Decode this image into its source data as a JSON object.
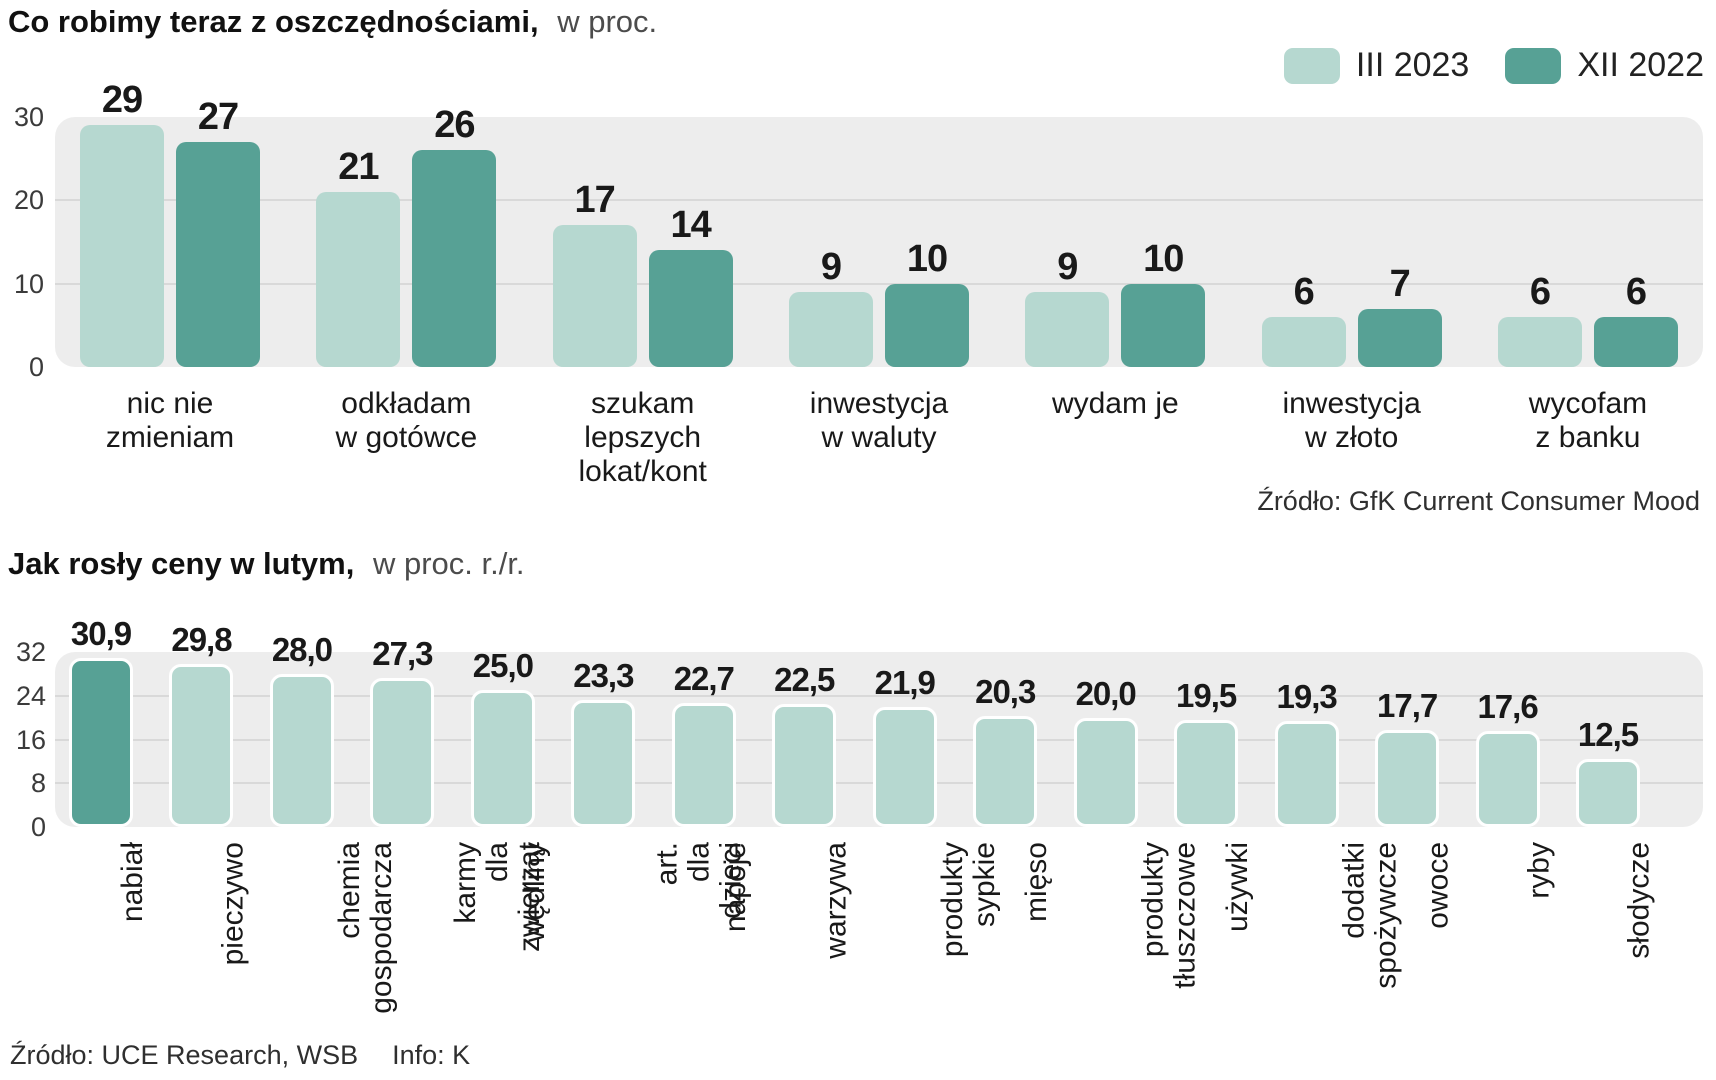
{
  "colors": {
    "series_light": "#b6d8d0",
    "series_dark": "#57a195",
    "plot_background": "#ededed",
    "gridline": "#d9d9d9"
  },
  "chart_data": [
    {
      "type": "bar",
      "title": "Co robimy teraz z oszczędnościami,",
      "subtitle": "w proc.",
      "categories": [
        "nic nie\nzmieniam",
        "odkładam\nw gotówce",
        "szukam\nlepszych\nlokat/kont",
        "inwestycja\nw waluty",
        "wydam je",
        "inwestycja\nw złoto",
        "wycofam\nz banku"
      ],
      "series": [
        {
          "name": "III 2023",
          "color": "#b6d8d0",
          "values": [
            29,
            21,
            17,
            9,
            9,
            6,
            6
          ]
        },
        {
          "name": "XII 2022",
          "color": "#57a195",
          "values": [
            27,
            26,
            14,
            10,
            10,
            7,
            6
          ]
        }
      ],
      "ylim": [
        0,
        30
      ],
      "y_ticks": [
        0,
        10,
        20,
        30
      ],
      "grid": true,
      "legend_position": "top-right",
      "source": "Źródło: GfK Current Consumer Mood"
    },
    {
      "type": "bar",
      "title": "Jak rosły ceny w lutym,",
      "subtitle": "w proc. r./r.",
      "categories": [
        "nabiał",
        "pieczywo",
        "chemia\ngospodarcza",
        "karmy\ndla\nzwierząt",
        "wędliny",
        "art.\ndla\ndzieci",
        "napoje",
        "warzywa",
        "produkty\nsypkie",
        "mięso",
        "produkty\ntłuszczowe",
        "używki",
        "dodatki\nspożywcze",
        "owoce",
        "ryby",
        "słodycze"
      ],
      "values": [
        30.9,
        29.8,
        28.0,
        27.3,
        25.0,
        23.3,
        22.7,
        22.5,
        21.9,
        20.3,
        20.0,
        19.5,
        19.3,
        17.7,
        17.6,
        12.5
      ],
      "value_labels": [
        "30,9",
        "29,8",
        "28,0",
        "27,3",
        "25,0",
        "23,3",
        "22,7",
        "22,5",
        "21,9",
        "20,3",
        "20,0",
        "19,5",
        "19,3",
        "17,7",
        "17,6",
        "12,5"
      ],
      "bar_color": "#b6d8d0",
      "highlight_color": "#57a195",
      "highlight_index": 0,
      "ylim": [
        0,
        32
      ],
      "y_ticks": [
        0,
        8,
        16,
        24,
        32
      ],
      "grid": true,
      "source": "Źródło: UCE Research, WSB",
      "info": "Info: K"
    }
  ]
}
